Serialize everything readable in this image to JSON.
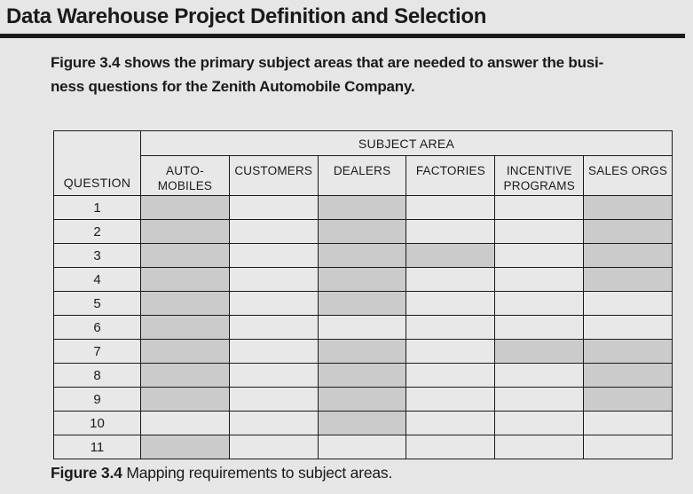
{
  "colors": {
    "page_background": "#e7e6e7",
    "shaded_cell": "#cccbcc",
    "light_cell": "#e9e8e9",
    "border": "#1b1b1b",
    "text": "#1a1a1a"
  },
  "heading": {
    "title": "Data Warehouse Project Definition and Selection"
  },
  "intro": {
    "line1": "Figure 3.4 shows the primary subject areas that are needed to answer the busi-",
    "line2": "ness questions for the Zenith Automobile Company."
  },
  "table": {
    "corner_header": "QUESTION",
    "group_header": "SUBJECT AREA",
    "columns": [
      {
        "id": "automobiles",
        "lines": [
          "AUTO-",
          "MOBILES"
        ],
        "label": "AUTOMOBILES"
      },
      {
        "id": "customers",
        "lines": [
          "CUSTOMERS"
        ],
        "label": "CUSTOMERS"
      },
      {
        "id": "dealers",
        "lines": [
          "DEALERS"
        ],
        "label": "DEALERS"
      },
      {
        "id": "factories",
        "lines": [
          "FACTORIES"
        ],
        "label": "FACTORIES"
      },
      {
        "id": "incentive-programs",
        "lines": [
          "INCENTIVE",
          "PROGRAMS"
        ],
        "label": "INCENTIVE PROGRAMS"
      },
      {
        "id": "sales-orgs",
        "lines": [
          "SALES ORGS"
        ],
        "label": "SALES ORGS"
      }
    ],
    "rows": [
      {
        "question": "1",
        "cells": [
          true,
          false,
          true,
          false,
          false,
          true
        ]
      },
      {
        "question": "2",
        "cells": [
          true,
          false,
          true,
          false,
          false,
          true
        ]
      },
      {
        "question": "3",
        "cells": [
          true,
          false,
          true,
          true,
          false,
          true
        ]
      },
      {
        "question": "4",
        "cells": [
          true,
          false,
          true,
          false,
          false,
          true
        ]
      },
      {
        "question": "5",
        "cells": [
          true,
          false,
          true,
          false,
          false,
          false
        ]
      },
      {
        "question": "6",
        "cells": [
          true,
          false,
          false,
          false,
          false,
          false
        ]
      },
      {
        "question": "7",
        "cells": [
          true,
          false,
          true,
          false,
          true,
          true
        ]
      },
      {
        "question": "8",
        "cells": [
          true,
          false,
          true,
          false,
          false,
          true
        ]
      },
      {
        "question": "9",
        "cells": [
          true,
          false,
          true,
          false,
          false,
          true
        ]
      },
      {
        "question": "10",
        "cells": [
          false,
          false,
          true,
          false,
          false,
          false
        ]
      },
      {
        "question": "11",
        "cells": [
          true,
          false,
          false,
          false,
          false,
          false
        ]
      }
    ]
  },
  "figure": {
    "caption_label": "Figure 3.4",
    "caption_text": " Mapping requirements to subject areas."
  }
}
